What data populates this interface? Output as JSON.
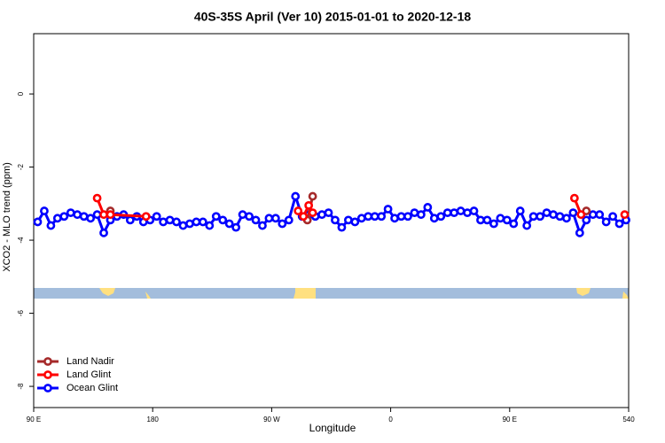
{
  "chart_data": {
    "type": "line",
    "title": "40S-35S April (Ver 10)   2015-01-01 to 2020-12-18",
    "xlabel": "Longitude",
    "ylabel": "XCO2 - MLO trend (ppm)",
    "xlim": [
      90,
      540
    ],
    "xticks": [
      {
        "value": 90,
        "label": "90 E"
      },
      180,
      {
        "value": 270,
        "label": "90 W"
      },
      {
        "value": 360,
        "label": "0"
      },
      {
        "value": 450,
        "label": "90 E"
      },
      540
    ],
    "ylim": [
      -8.58,
      1.65
    ],
    "yticks": [
      0,
      -2,
      -4,
      -6,
      -8
    ],
    "legend": "bottom-left",
    "series": [
      {
        "name": "Ocean Glint",
        "color": "#0000ff",
        "x": [
          93,
          98,
          103,
          108,
          113,
          118,
          123,
          128,
          133,
          138,
          143,
          148,
          153,
          158,
          163,
          168,
          173,
          178,
          183,
          188,
          193,
          198,
          203,
          208,
          213,
          218,
          223,
          228,
          233,
          238,
          243,
          248,
          253,
          258,
          263,
          268,
          273,
          278,
          283,
          288,
          293,
          298,
          303,
          308,
          313,
          318,
          323,
          328,
          333,
          338,
          343,
          348,
          353,
          358,
          363,
          368,
          373,
          378,
          383,
          388,
          393,
          398,
          403,
          408,
          413,
          418,
          423,
          428,
          433,
          438,
          443,
          448,
          453,
          458,
          463,
          468,
          473,
          478,
          483,
          488,
          493,
          498,
          503,
          508,
          513,
          518,
          523,
          528,
          533,
          538
        ],
        "values": [
          -3.5,
          -3.2,
          -3.6,
          -3.4,
          -3.35,
          -3.25,
          -3.3,
          -3.35,
          -3.4,
          -3.3,
          -3.8,
          -3.45,
          -3.35,
          -3.3,
          -3.45,
          -3.35,
          -3.5,
          -3.45,
          -3.35,
          -3.5,
          -3.45,
          -3.5,
          -3.6,
          -3.55,
          -3.5,
          -3.5,
          -3.6,
          -3.35,
          -3.45,
          -3.55,
          -3.65,
          -3.3,
          -3.35,
          -3.45,
          -3.6,
          -3.4,
          -3.4,
          -3.55,
          -3.45,
          -2.8,
          -3.35,
          -3.3,
          -3.35,
          -3.3,
          -3.25,
          -3.45,
          -3.65,
          -3.45,
          -3.5,
          -3.4,
          -3.35,
          -3.35,
          -3.35,
          -3.15,
          -3.4,
          -3.35,
          -3.35,
          -3.25,
          -3.3,
          -3.1,
          -3.4,
          -3.35,
          -3.25,
          -3.25,
          -3.2,
          -3.25,
          -3.2,
          -3.45,
          -3.45,
          -3.55,
          -3.4,
          -3.45,
          -3.55,
          -3.2,
          -3.6,
          -3.35,
          -3.35,
          -3.25,
          -3.3,
          -3.35,
          -3.4,
          -3.25,
          -3.8,
          -3.45,
          -3.3,
          -3.3,
          -3.5,
          -3.35,
          -3.55,
          -3.45
        ]
      },
      {
        "name": "Land Nadir",
        "color": "#a52a2a",
        "x": [
          148,
          200,
          297,
          301,
          400,
          508
        ],
        "values": [
          -3.2,
          null,
          -3.45,
          -2.8,
          null,
          -3.2
        ]
      },
      {
        "name": "Land Glint",
        "color": "#ff0000",
        "x": [
          138,
          143,
          148,
          175,
          230,
          290,
          294,
          298,
          301,
          420,
          499,
          504,
          515,
          537
        ],
        "values": [
          -2.85,
          -3.3,
          -3.3,
          -3.35,
          null,
          -3.2,
          -3.35,
          -3.05,
          -3.25,
          null,
          -2.85,
          -3.3,
          null,
          -3.3
        ]
      }
    ]
  }
}
